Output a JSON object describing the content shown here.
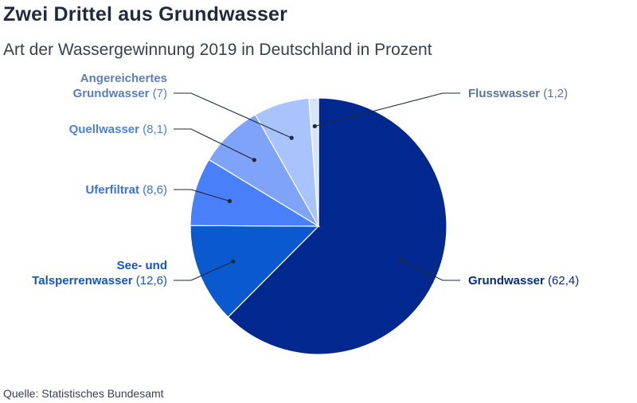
{
  "title": "Zwei Drittel aus Grundwasser",
  "subtitle": "Art der Wassergewinnung 2019 in Deutschland in Prozent",
  "source": "Quelle: Statistisches Bundesamt",
  "chart_data": {
    "type": "pie",
    "slices": [
      {
        "id": "grundwasser",
        "label_lines": [
          "Grundwasser"
        ],
        "value": 62.4,
        "value_text": "(62,4)",
        "color": "#00288f",
        "text_color": "#0a2a8a"
      },
      {
        "id": "see-talsperre",
        "label_lines": [
          "See- und",
          "Talsperrenwasser"
        ],
        "value": 12.6,
        "value_text": "(12,6)",
        "color": "#0a59cf",
        "text_color": "#1554c4"
      },
      {
        "id": "uferfiltrat",
        "label_lines": [
          "Uferfiltrat"
        ],
        "value": 8.6,
        "value_text": "(8,6)",
        "color": "#4a7ffa",
        "text_color": "#3d6fe6"
      },
      {
        "id": "quellwasser",
        "label_lines": [
          "Quellwasser"
        ],
        "value": 8.1,
        "value_text": "(8,1)",
        "color": "#7ea3f9",
        "text_color": "#4d7fe6"
      },
      {
        "id": "angereichertes",
        "label_lines": [
          "Angereichertes",
          "Grundwasser"
        ],
        "value": 7,
        "value_text": "(7)",
        "color": "#a9c4fc",
        "text_color": "#5b7fb6"
      },
      {
        "id": "flusswasser",
        "label_lines": [
          "Flusswasser"
        ],
        "value": 1.2,
        "value_text": "(1,2)",
        "color": "#d8e5f8",
        "text_color": "#5e7592"
      }
    ]
  }
}
